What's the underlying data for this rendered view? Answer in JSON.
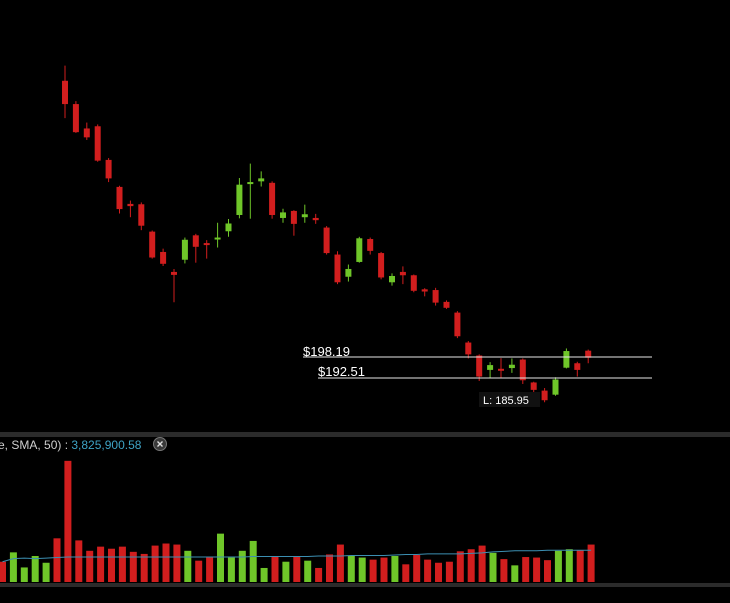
{
  "colors": {
    "background": "#000000",
    "up": "#6fc629",
    "down": "#d21e1e",
    "level_line": "#e6e6e6",
    "sma": "#3c8fb2",
    "separator": "#2b2b2b",
    "label_white": "#ffffff",
    "label_grey": "#cfcfcf",
    "label_blue": "#3ea3c5"
  },
  "volume_pane": {
    "indicator_label": "e, SMA, 50)",
    "separator": " : ",
    "value": "3,825,900.58",
    "close_icon": "close-icon"
  },
  "chart_data": {
    "type": "candlestick",
    "price_levels": [
      {
        "label": "$198.19",
        "value": 198.19
      },
      {
        "label": "$192.51",
        "value": 192.51
      }
    ],
    "low_marker": {
      "label": "L: 185.95",
      "value": 185.95
    },
    "candles": [
      {
        "o": 272.9,
        "c": 266.6,
        "h": 277.0,
        "l": 262.8,
        "dir": "down"
      },
      {
        "o": 266.6,
        "c": 259.0,
        "h": 267.4,
        "l": 258.8,
        "dir": "down"
      },
      {
        "o": 260.0,
        "c": 257.6,
        "h": 261.6,
        "l": 256.9,
        "dir": "down"
      },
      {
        "o": 260.6,
        "c": 251.3,
        "h": 261.1,
        "l": 251.0,
        "dir": "down"
      },
      {
        "o": 251.5,
        "c": 246.5,
        "h": 252.0,
        "l": 245.5,
        "dir": "down"
      },
      {
        "o": 244.2,
        "c": 238.2,
        "h": 244.5,
        "l": 237.0,
        "dir": "down"
      },
      {
        "o": 239.6,
        "c": 239.0,
        "h": 240.5,
        "l": 236.0,
        "dir": "down"
      },
      {
        "o": 239.5,
        "c": 233.7,
        "h": 240.0,
        "l": 232.5,
        "dir": "down"
      },
      {
        "o": 232.1,
        "c": 225.1,
        "h": 232.4,
        "l": 224.8,
        "dir": "down"
      },
      {
        "o": 226.6,
        "c": 223.4,
        "h": 227.5,
        "l": 222.8,
        "dir": "down"
      },
      {
        "o": 221.2,
        "c": 220.4,
        "h": 222.0,
        "l": 213.0,
        "dir": "down"
      },
      {
        "o": 224.5,
        "c": 229.9,
        "h": 230.5,
        "l": 223.5,
        "dir": "up"
      },
      {
        "o": 231.1,
        "c": 228.0,
        "h": 231.5,
        "l": 223.7,
        "dir": "down"
      },
      {
        "o": 229.0,
        "c": 228.5,
        "h": 229.8,
        "l": 224.8,
        "dir": "down"
      },
      {
        "o": 230.0,
        "c": 230.5,
        "h": 234.5,
        "l": 227.8,
        "dir": "up"
      },
      {
        "o": 232.2,
        "c": 234.3,
        "h": 235.5,
        "l": 230.7,
        "dir": "up"
      },
      {
        "o": 236.6,
        "c": 244.8,
        "h": 246.6,
        "l": 235.7,
        "dir": "up"
      },
      {
        "o": 245.0,
        "c": 245.5,
        "h": 250.5,
        "l": 235.6,
        "dir": "up"
      },
      {
        "o": 245.7,
        "c": 246.5,
        "h": 248.4,
        "l": 244.3,
        "dir": "up"
      },
      {
        "o": 245.3,
        "c": 236.6,
        "h": 245.7,
        "l": 235.6,
        "dir": "down"
      },
      {
        "o": 235.8,
        "c": 237.3,
        "h": 238.3,
        "l": 234.5,
        "dir": "up"
      },
      {
        "o": 237.7,
        "c": 234.2,
        "h": 237.9,
        "l": 231.0,
        "dir": "down"
      },
      {
        "o": 236.0,
        "c": 236.8,
        "h": 239.4,
        "l": 234.5,
        "dir": "up"
      },
      {
        "o": 235.8,
        "c": 235.2,
        "h": 236.9,
        "l": 234.2,
        "dir": "down"
      },
      {
        "o": 233.2,
        "c": 226.3,
        "h": 233.6,
        "l": 225.9,
        "dir": "down"
      },
      {
        "o": 225.9,
        "c": 218.4,
        "h": 226.8,
        "l": 217.9,
        "dir": "down"
      },
      {
        "o": 219.9,
        "c": 222.0,
        "h": 223.2,
        "l": 218.6,
        "dir": "up"
      },
      {
        "o": 223.9,
        "c": 230.3,
        "h": 230.7,
        "l": 223.7,
        "dir": "up"
      },
      {
        "o": 230.1,
        "c": 226.9,
        "h": 230.5,
        "l": 225.9,
        "dir": "down"
      },
      {
        "o": 226.3,
        "c": 219.7,
        "h": 226.6,
        "l": 219.2,
        "dir": "down"
      },
      {
        "o": 218.4,
        "c": 220.1,
        "h": 220.8,
        "l": 217.5,
        "dir": "up"
      },
      {
        "o": 221.2,
        "c": 220.3,
        "h": 222.7,
        "l": 217.9,
        "dir": "down"
      },
      {
        "o": 220.3,
        "c": 216.1,
        "h": 220.5,
        "l": 215.7,
        "dir": "down"
      },
      {
        "o": 216.5,
        "c": 215.9,
        "h": 216.8,
        "l": 214.6,
        "dir": "down"
      },
      {
        "o": 216.3,
        "c": 212.9,
        "h": 216.9,
        "l": 212.1,
        "dir": "down"
      },
      {
        "o": 213.1,
        "c": 211.5,
        "h": 213.5,
        "l": 211.2,
        "dir": "down"
      },
      {
        "o": 210.2,
        "c": 203.8,
        "h": 210.6,
        "l": 203.3,
        "dir": "down"
      },
      {
        "o": 202.1,
        "c": 198.9,
        "h": 202.5,
        "l": 197.8,
        "dir": "down"
      },
      {
        "o": 198.6,
        "c": 192.9,
        "h": 198.9,
        "l": 191.7,
        "dir": "down"
      },
      {
        "o": 194.7,
        "c": 196.0,
        "h": 196.8,
        "l": 192.5,
        "dir": "up"
      },
      {
        "o": 195.0,
        "c": 194.7,
        "h": 197.9,
        "l": 192.5,
        "dir": "down"
      },
      {
        "o": 195.2,
        "c": 196.1,
        "h": 197.8,
        "l": 193.9,
        "dir": "up"
      },
      {
        "o": 197.5,
        "c": 191.9,
        "h": 197.8,
        "l": 190.9,
        "dir": "down"
      },
      {
        "o": 191.3,
        "c": 189.3,
        "h": 191.5,
        "l": 187.8,
        "dir": "down"
      },
      {
        "o": 189.1,
        "c": 186.5,
        "h": 189.8,
        "l": 185.95,
        "dir": "down"
      },
      {
        "o": 188.0,
        "c": 192.1,
        "h": 192.7,
        "l": 187.7,
        "dir": "up"
      },
      {
        "o": 195.3,
        "c": 199.8,
        "h": 200.5,
        "l": 195.1,
        "dir": "up"
      },
      {
        "o": 196.5,
        "c": 194.7,
        "h": 196.9,
        "l": 192.9,
        "dir": "down"
      },
      {
        "o": 199.9,
        "c": 198.0,
        "h": 200.2,
        "l": 196.5,
        "dir": "down"
      }
    ],
    "volume_bars": [
      {
        "v": 3.9,
        "dir": "down"
      },
      {
        "v": 5.7,
        "dir": "up"
      },
      {
        "v": 2.8,
        "dir": "up"
      },
      {
        "v": 5.0,
        "dir": "up"
      },
      {
        "v": 3.7,
        "dir": "up"
      },
      {
        "v": 8.4,
        "dir": "down"
      },
      {
        "v": 23.3,
        "dir": "down"
      },
      {
        "v": 8.0,
        "dir": "down"
      },
      {
        "v": 6.0,
        "dir": "down"
      },
      {
        "v": 6.8,
        "dir": "down"
      },
      {
        "v": 6.4,
        "dir": "down"
      },
      {
        "v": 6.8,
        "dir": "down"
      },
      {
        "v": 5.8,
        "dir": "down"
      },
      {
        "v": 5.4,
        "dir": "down"
      },
      {
        "v": 7.0,
        "dir": "down"
      },
      {
        "v": 7.4,
        "dir": "down"
      },
      {
        "v": 7.2,
        "dir": "down"
      },
      {
        "v": 6.0,
        "dir": "up"
      },
      {
        "v": 4.1,
        "dir": "down"
      },
      {
        "v": 4.9,
        "dir": "down"
      },
      {
        "v": 9.3,
        "dir": "up"
      },
      {
        "v": 4.7,
        "dir": "up"
      },
      {
        "v": 6.0,
        "dir": "up"
      },
      {
        "v": 7.9,
        "dir": "up"
      },
      {
        "v": 2.7,
        "dir": "up"
      },
      {
        "v": 5.0,
        "dir": "down"
      },
      {
        "v": 3.9,
        "dir": "up"
      },
      {
        "v": 4.9,
        "dir": "down"
      },
      {
        "v": 4.1,
        "dir": "up"
      },
      {
        "v": 2.7,
        "dir": "down"
      },
      {
        "v": 5.3,
        "dir": "down"
      },
      {
        "v": 7.2,
        "dir": "down"
      },
      {
        "v": 5.0,
        "dir": "up"
      },
      {
        "v": 4.7,
        "dir": "up"
      },
      {
        "v": 4.3,
        "dir": "down"
      },
      {
        "v": 4.7,
        "dir": "down"
      },
      {
        "v": 5.0,
        "dir": "up"
      },
      {
        "v": 3.4,
        "dir": "down"
      },
      {
        "v": 5.2,
        "dir": "down"
      },
      {
        "v": 4.3,
        "dir": "down"
      },
      {
        "v": 3.7,
        "dir": "down"
      },
      {
        "v": 3.9,
        "dir": "down"
      },
      {
        "v": 5.9,
        "dir": "down"
      },
      {
        "v": 6.3,
        "dir": "down"
      },
      {
        "v": 7.0,
        "dir": "down"
      },
      {
        "v": 5.6,
        "dir": "up"
      },
      {
        "v": 4.4,
        "dir": "down"
      },
      {
        "v": 3.2,
        "dir": "up"
      },
      {
        "v": 4.8,
        "dir": "down"
      },
      {
        "v": 4.7,
        "dir": "down"
      },
      {
        "v": 4.2,
        "dir": "down"
      },
      {
        "v": 6.0,
        "dir": "up"
      },
      {
        "v": 6.3,
        "dir": "up"
      },
      {
        "v": 6.1,
        "dir": "down"
      },
      {
        "v": 7.2,
        "dir": "down"
      }
    ],
    "sma_values": [
      3.9,
      4.5,
      4.6,
      4.5,
      4.6,
      4.7,
      4.8,
      4.8,
      4.8,
      4.8,
      4.8,
      4.8,
      4.8,
      4.8,
      4.8,
      4.8,
      4.8,
      4.8,
      4.8,
      4.8,
      4.8,
      4.8,
      4.8,
      4.9,
      4.9,
      4.9,
      4.9,
      4.9,
      4.9,
      5.0,
      5.0,
      5.0,
      5.1,
      5.1,
      5.1,
      5.1,
      5.2,
      5.3,
      5.3,
      5.4,
      5.4,
      5.4,
      5.4,
      5.5,
      5.6,
      5.8,
      5.9,
      6.0,
      6.0,
      6.0,
      6.1,
      6.1,
      6.1,
      6.1,
      6.1
    ],
    "legend": "none",
    "grid": false
  }
}
